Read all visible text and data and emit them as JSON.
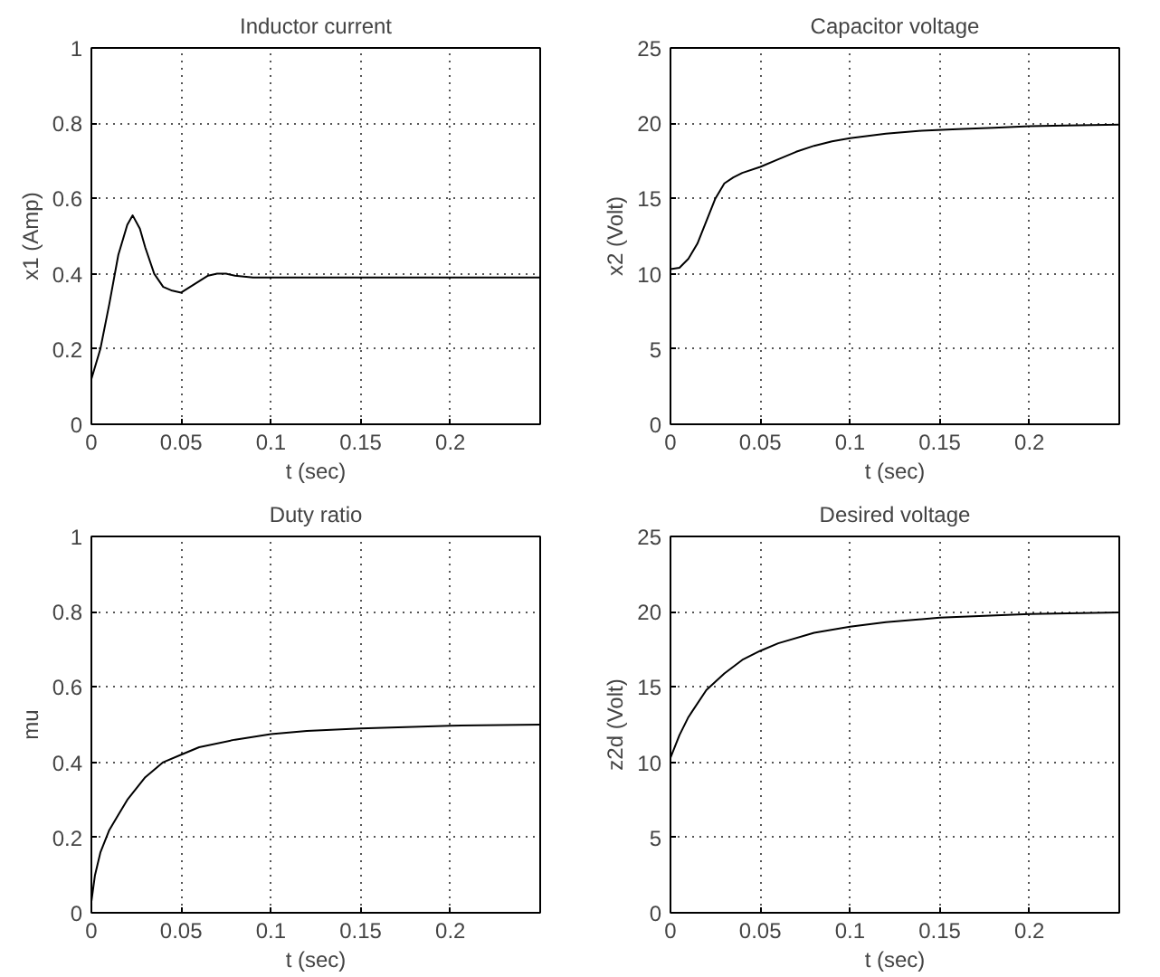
{
  "chart_data": [
    {
      "type": "line",
      "title": "Inductor current",
      "xlabel": "t (sec)",
      "ylabel": "x1 (Amp)",
      "x": [
        0,
        0.005,
        0.01,
        0.015,
        0.02,
        0.023,
        0.027,
        0.03,
        0.035,
        0.04,
        0.045,
        0.05,
        0.055,
        0.06,
        0.065,
        0.07,
        0.075,
        0.08,
        0.09,
        0.1,
        0.12,
        0.14,
        0.16,
        0.18,
        0.2,
        0.22,
        0.25
      ],
      "series": [
        {
          "color": "#000000",
          "values": [
            0.12,
            0.2,
            0.32,
            0.45,
            0.53,
            0.555,
            0.52,
            0.47,
            0.4,
            0.365,
            0.355,
            0.35,
            0.365,
            0.38,
            0.395,
            0.4,
            0.4,
            0.395,
            0.39,
            0.39,
            0.39,
            0.39,
            0.39,
            0.39,
            0.39,
            0.39,
            0.39
          ]
        }
      ],
      "xlim": [
        0,
        0.25
      ],
      "ylim": [
        0,
        1
      ],
      "xticks": [
        0,
        0.05,
        0.1,
        0.15,
        0.2
      ],
      "yticks": [
        0,
        0.2,
        0.4,
        0.6,
        0.8,
        1
      ],
      "grid": true,
      "line_style": "solid",
      "marker": "none"
    },
    {
      "type": "line",
      "title": "Capacitor voltage",
      "xlabel": "t (sec)",
      "ylabel": "x2 (Volt)",
      "x": [
        0,
        0.005,
        0.01,
        0.015,
        0.02,
        0.025,
        0.03,
        0.035,
        0.04,
        0.05,
        0.06,
        0.07,
        0.08,
        0.09,
        0.1,
        0.12,
        0.14,
        0.16,
        0.18,
        0.2,
        0.22,
        0.25
      ],
      "series": [
        {
          "color": "#000000",
          "values": [
            10.3,
            10.4,
            11,
            12,
            13.5,
            15,
            16,
            16.4,
            16.7,
            17.1,
            17.6,
            18.1,
            18.5,
            18.8,
            19,
            19.3,
            19.5,
            19.6,
            19.7,
            19.8,
            19.85,
            19.9
          ]
        }
      ],
      "xlim": [
        0,
        0.25
      ],
      "ylim": [
        0,
        25
      ],
      "xticks": [
        0,
        0.05,
        0.1,
        0.15,
        0.2
      ],
      "yticks": [
        0,
        5,
        10,
        15,
        20,
        25
      ],
      "grid": true,
      "line_style": "solid",
      "marker": "none"
    },
    {
      "type": "line",
      "title": "Duty ratio",
      "xlabel": "t (sec)",
      "ylabel": "mu",
      "x": [
        0,
        0.002,
        0.005,
        0.01,
        0.015,
        0.02,
        0.03,
        0.04,
        0.05,
        0.06,
        0.08,
        0.1,
        0.12,
        0.15,
        0.2,
        0.25
      ],
      "series": [
        {
          "color": "#000000",
          "values": [
            0.03,
            0.1,
            0.16,
            0.22,
            0.26,
            0.3,
            0.36,
            0.4,
            0.42,
            0.44,
            0.46,
            0.475,
            0.483,
            0.49,
            0.497,
            0.5
          ]
        }
      ],
      "xlim": [
        0,
        0.25
      ],
      "ylim": [
        0,
        1
      ],
      "xticks": [
        0,
        0.05,
        0.1,
        0.15,
        0.2
      ],
      "yticks": [
        0,
        0.2,
        0.4,
        0.6,
        0.8,
        1
      ],
      "grid": true,
      "line_style": "solid",
      "marker": "none"
    },
    {
      "type": "line",
      "title": "Desired voltage",
      "xlabel": "t (sec)",
      "ylabel": "z2d (Volt)",
      "x": [
        0,
        0.005,
        0.01,
        0.02,
        0.03,
        0.04,
        0.05,
        0.06,
        0.08,
        0.1,
        0.12,
        0.15,
        0.2,
        0.25
      ],
      "series": [
        {
          "color": "#000000",
          "values": [
            10.3,
            11.8,
            13,
            14.8,
            15.9,
            16.8,
            17.4,
            17.9,
            18.6,
            19.0,
            19.3,
            19.6,
            19.85,
            19.95
          ]
        }
      ],
      "xlim": [
        0,
        0.25
      ],
      "ylim": [
        0,
        25
      ],
      "xticks": [
        0,
        0.05,
        0.1,
        0.15,
        0.2
      ],
      "yticks": [
        0,
        5,
        10,
        15,
        20,
        25
      ],
      "grid": true,
      "line_style": "solid",
      "marker": "none"
    }
  ]
}
